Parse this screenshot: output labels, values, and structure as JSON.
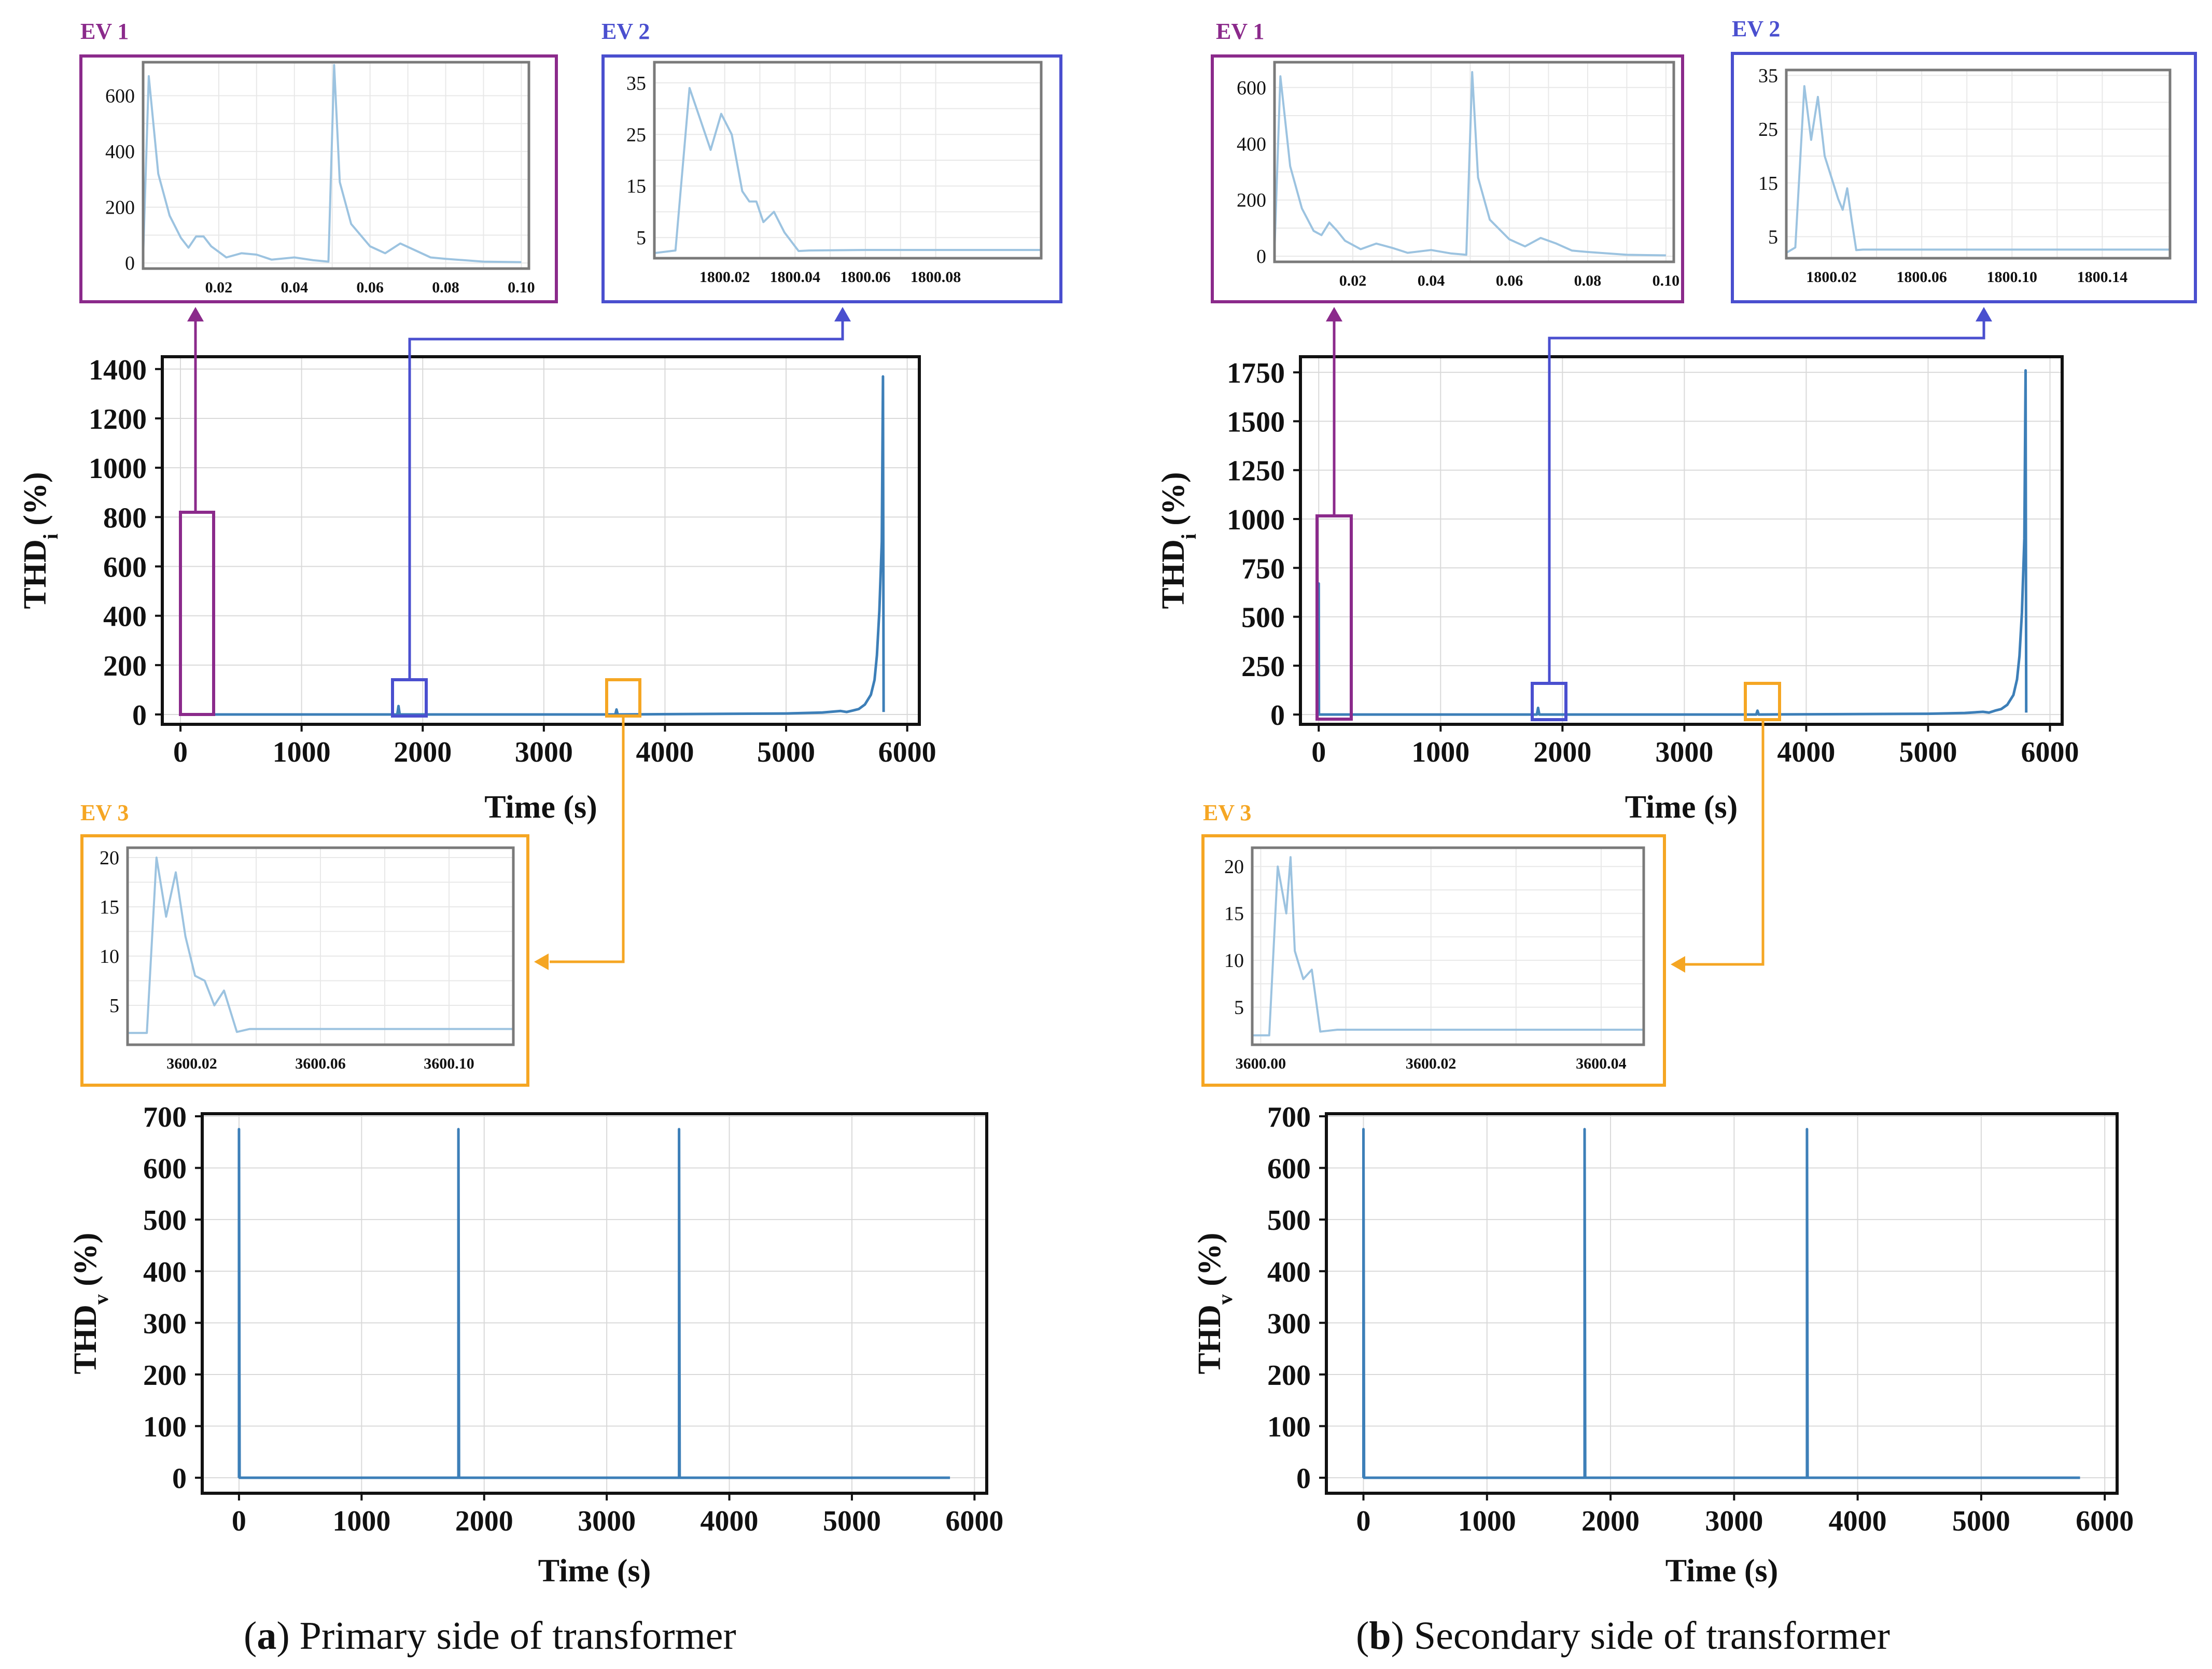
{
  "colors": {
    "ev1": "#8b2a8b",
    "ev2": "#4a4fcf",
    "ev3": "#f5a623",
    "series_main": "#3d7fb8",
    "series_inset": "#9cc3e0",
    "axis": "#111111",
    "inset_frame": "#7a7a7a"
  },
  "panels": [
    {
      "caption_letter": "a",
      "caption_text": ") Primary side of transformer",
      "caption_open": "(",
      "ev_labels": [
        "EV 1",
        "EV 2",
        "EV 3"
      ]
    },
    {
      "caption_letter": "b",
      "caption_text": ") Secondary side of transformer",
      "caption_open": "(",
      "ev_labels": [
        "EV 1",
        "EV 2",
        "EV 3"
      ]
    }
  ],
  "chart_data": [
    {
      "id": "a-thdi",
      "type": "line",
      "xlabel": "Time (s)",
      "ylabel": "THD",
      "ylabel_sub": "i",
      "ylabel_tail": " (%)",
      "xlim": [
        -150,
        6100
      ],
      "ylim": [
        -40,
        1450
      ],
      "xticks": [
        0,
        1000,
        2000,
        3000,
        4000,
        5000,
        6000
      ],
      "yticks": [
        0,
        200,
        400,
        600,
        800,
        1000,
        1200,
        1400
      ],
      "x": [
        0,
        0,
        2,
        1790,
        1800,
        1810,
        3590,
        3600,
        3610,
        5000,
        5300,
        5450,
        5500,
        5550,
        5600,
        5650,
        5700,
        5730,
        5750,
        5770,
        5790,
        5800,
        5805
      ],
      "y": [
        0,
        710,
        0,
        0,
        34,
        0,
        0,
        20,
        0,
        4,
        8,
        14,
        10,
        16,
        22,
        40,
        80,
        140,
        240,
        420,
        700,
        1370,
        10
      ]
    },
    {
      "id": "a-thdv",
      "type": "line",
      "xlabel": "Time (s)",
      "ylabel": "THD",
      "ylabel_sub": "v",
      "ylabel_tail": " (%)",
      "xlim": [
        -300,
        6100
      ],
      "ylim": [
        -30,
        705
      ],
      "xticks": [
        0,
        1000,
        2000,
        3000,
        4000,
        5000,
        6000
      ],
      "yticks": [
        0,
        100,
        200,
        300,
        400,
        500,
        600,
        700
      ],
      "x": [
        0,
        0,
        5,
        1790,
        1790,
        1795,
        3590,
        3590,
        3595,
        5800
      ],
      "y": [
        0,
        675,
        0,
        0,
        675,
        0,
        0,
        675,
        0,
        0
      ]
    },
    {
      "id": "b-thdi",
      "type": "line",
      "xlabel": "Time (s)",
      "ylabel": "THD",
      "ylabel_sub": "i",
      "ylabel_tail": " (%)",
      "xlim": [
        -150,
        6100
      ],
      "ylim": [
        -50,
        1830
      ],
      "xticks": [
        0,
        1000,
        2000,
        3000,
        4000,
        5000,
        6000
      ],
      "yticks": [
        0,
        250,
        500,
        750,
        1000,
        1250,
        1500,
        1750
      ],
      "x": [
        0,
        0,
        2,
        1790,
        1800,
        1810,
        3590,
        3600,
        3610,
        5000,
        5300,
        5450,
        5500,
        5550,
        5600,
        5650,
        5700,
        5730,
        5750,
        5770,
        5790,
        5800,
        5805
      ],
      "y": [
        0,
        670,
        0,
        0,
        34,
        0,
        0,
        20,
        0,
        4,
        8,
        14,
        10,
        20,
        28,
        50,
        100,
        180,
        300,
        520,
        900,
        1760,
        10
      ]
    },
    {
      "id": "b-thdv",
      "type": "line",
      "xlabel": "Time (s)",
      "ylabel": "THD",
      "ylabel_sub": "v",
      "ylabel_tail": " (%)",
      "xlim": [
        -300,
        6100
      ],
      "ylim": [
        -30,
        705
      ],
      "xticks": [
        0,
        1000,
        2000,
        3000,
        4000,
        5000,
        6000
      ],
      "yticks": [
        0,
        100,
        200,
        300,
        400,
        500,
        600,
        700
      ],
      "x": [
        0,
        0,
        5,
        1790,
        1790,
        1795,
        3590,
        3590,
        3595,
        5800
      ],
      "y": [
        0,
        675,
        0,
        0,
        675,
        0,
        0,
        675,
        0,
        0
      ]
    },
    {
      "id": "a-ev1",
      "type": "line",
      "xlim": [
        0,
        0.102
      ],
      "ylim": [
        -20,
        720
      ],
      "xticks": [
        0.02,
        0.04,
        0.06,
        0.08,
        0.1
      ],
      "xticklabels": [
        "0.02",
        "0.04",
        "0.06",
        "0.08",
        "0.10"
      ],
      "yticks": [
        0,
        200,
        400,
        600
      ],
      "x": [
        0.0,
        0.0015,
        0.004,
        0.007,
        0.01,
        0.012,
        0.014,
        0.016,
        0.018,
        0.022,
        0.026,
        0.03,
        0.034,
        0.04,
        0.045,
        0.049,
        0.0505,
        0.052,
        0.055,
        0.06,
        0.064,
        0.068,
        0.072,
        0.076,
        0.08,
        0.09,
        0.1
      ],
      "y": [
        20,
        670,
        320,
        170,
        90,
        55,
        95,
        95,
        60,
        20,
        35,
        30,
        12,
        20,
        10,
        5,
        710,
        290,
        140,
        60,
        35,
        70,
        45,
        20,
        15,
        5,
        3
      ]
    },
    {
      "id": "a-ev2",
      "type": "line",
      "xlim": [
        1800.0,
        1800.11
      ],
      "ylim": [
        1,
        39
      ],
      "xticks": [
        1800.02,
        1800.04,
        1800.06,
        1800.08
      ],
      "xticklabels": [
        "1800.02",
        "1800.04",
        "1800.06",
        "1800.08"
      ],
      "yticks": [
        5,
        15,
        25,
        35
      ],
      "x": [
        1800.0,
        1800.006,
        1800.01,
        1800.013,
        1800.016,
        1800.019,
        1800.022,
        1800.025,
        1800.027,
        1800.029,
        1800.031,
        1800.034,
        1800.037,
        1800.041,
        1800.044,
        1800.06,
        1800.09,
        1800.11
      ],
      "y": [
        2,
        2.5,
        34,
        28,
        22,
        29,
        25,
        14,
        12,
        12,
        8,
        10,
        6,
        2.4,
        2.5,
        2.6,
        2.6,
        2.6
      ]
    },
    {
      "id": "a-ev3",
      "type": "line",
      "xlim": [
        3600.0,
        3600.12
      ],
      "ylim": [
        1,
        21
      ],
      "xticks": [
        3600.02,
        3600.06,
        3600.1
      ],
      "xticklabels": [
        "3600.02",
        "3600.06",
        "3600.10"
      ],
      "yticks": [
        5,
        10,
        15,
        20
      ],
      "x": [
        3600.0,
        3600.006,
        3600.009,
        3600.012,
        3600.015,
        3600.018,
        3600.021,
        3600.024,
        3600.027,
        3600.03,
        3600.034,
        3600.038,
        3600.05,
        3600.12
      ],
      "y": [
        2.2,
        2.2,
        20,
        14,
        18.5,
        12,
        8,
        7.5,
        5,
        6.5,
        2.3,
        2.6,
        2.6,
        2.6
      ]
    },
    {
      "id": "b-ev1",
      "type": "line",
      "xlim": [
        0,
        0.102
      ],
      "ylim": [
        -20,
        690
      ],
      "xticks": [
        0.02,
        0.04,
        0.06,
        0.08,
        0.1
      ],
      "xticklabels": [
        "0.02",
        "0.04",
        "0.06",
        "0.08",
        "0.10"
      ],
      "yticks": [
        0,
        200,
        400,
        600
      ],
      "x": [
        0.0,
        0.0015,
        0.004,
        0.007,
        0.01,
        0.012,
        0.014,
        0.016,
        0.018,
        0.022,
        0.026,
        0.03,
        0.034,
        0.04,
        0.045,
        0.049,
        0.0505,
        0.052,
        0.055,
        0.06,
        0.064,
        0.068,
        0.072,
        0.076,
        0.08,
        0.09,
        0.1
      ],
      "y": [
        20,
        640,
        320,
        170,
        90,
        75,
        120,
        90,
        55,
        25,
        45,
        30,
        12,
        22,
        10,
        5,
        655,
        280,
        130,
        60,
        35,
        65,
        45,
        20,
        15,
        5,
        3
      ]
    },
    {
      "id": "b-ev2",
      "type": "line",
      "xlim": [
        1800.0,
        1800.17
      ],
      "ylim": [
        1,
        36
      ],
      "xticks": [
        1800.02,
        1800.06,
        1800.1,
        1800.14
      ],
      "xticklabels": [
        "1800.02",
        "1800.06",
        "1800.10",
        "1800.14"
      ],
      "yticks": [
        5,
        15,
        25,
        35
      ],
      "x": [
        1800.0,
        1800.004,
        1800.008,
        1800.011,
        1800.014,
        1800.017,
        1800.02,
        1800.023,
        1800.025,
        1800.027,
        1800.029,
        1800.031,
        1800.034,
        1800.04,
        1800.1,
        1800.17
      ],
      "y": [
        2,
        3,
        33,
        23,
        31,
        20,
        16,
        12,
        10,
        14,
        8,
        2.5,
        2.6,
        2.6,
        2.6,
        2.6
      ]
    },
    {
      "id": "b-ev3",
      "type": "line",
      "xlim": [
        3599.999,
        3600.045
      ],
      "ylim": [
        1,
        22
      ],
      "xticks": [
        3600.0,
        3600.02,
        3600.04
      ],
      "xticklabels": [
        "3600.00",
        "3600.02",
        "3600.04"
      ],
      "yticks": [
        5,
        10,
        15,
        20
      ],
      "x": [
        3599.999,
        3600.001,
        3600.002,
        3600.003,
        3600.0035,
        3600.004,
        3600.005,
        3600.006,
        3600.007,
        3600.009,
        3600.015,
        3600.03,
        3600.045
      ],
      "y": [
        2,
        2,
        20,
        15,
        21,
        11,
        8,
        9,
        2.4,
        2.6,
        2.6,
        2.6,
        2.6
      ]
    }
  ]
}
